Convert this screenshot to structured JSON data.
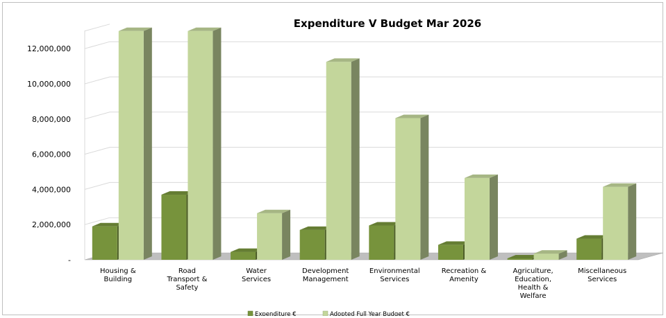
{
  "chart_data": {
    "type": "bar",
    "title": "Expenditure V Budget Mar 2026",
    "xlabel": "",
    "ylabel": "",
    "ylim": [
      0,
      13000000
    ],
    "yticks": [
      0,
      2000000,
      4000000,
      6000000,
      8000000,
      10000000,
      12000000
    ],
    "ytick_labels": [
      "-",
      "2,000,000",
      "4,000,000",
      "6,000,000",
      "8,000,000",
      "10,000,000",
      "12,000,000"
    ],
    "categories": [
      "Housing & Building",
      "Road Transport & Safety",
      "Water Services",
      "Development Management",
      "Environmental Services",
      "Recreation & Amenity",
      "Agriculture, Education, Health & Welfare",
      "Miscellaneous Services"
    ],
    "category_lines": [
      [
        "Housing &",
        "Building"
      ],
      [
        "Road",
        "Transport &",
        "Safety"
      ],
      [
        "Water",
        "Services"
      ],
      [
        "Development",
        "Management"
      ],
      [
        "Environmental",
        "Services"
      ],
      [
        "Recreation &",
        "Amenity"
      ],
      [
        "Agriculture,",
        "Education,",
        "Health &",
        "Welfare"
      ],
      [
        "Miscellaneous",
        "Services"
      ]
    ],
    "series": [
      {
        "name": "Expenditure €",
        "color": "#77933c",
        "values": [
          1900000,
          3700000,
          450000,
          1700000,
          1950000,
          850000,
          0,
          1200000
        ]
      },
      {
        "name": "Adopted Full Year Budget €",
        "color": "#c3d69b",
        "values": [
          13000000,
          13000000,
          2650000,
          11250000,
          8050000,
          4650000,
          350000,
          4150000
        ]
      }
    ],
    "grid": true,
    "legend": "bottom"
  }
}
